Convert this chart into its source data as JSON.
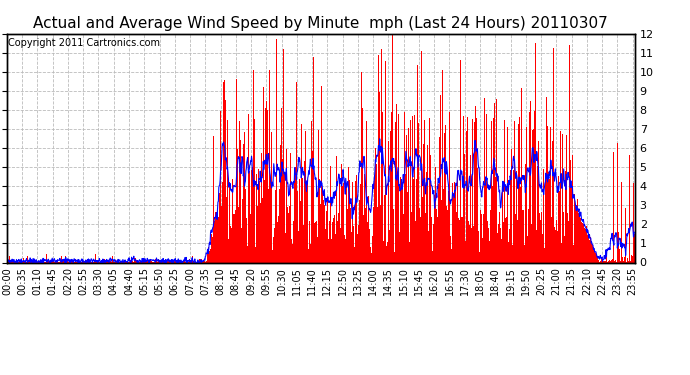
{
  "title": "Actual and Average Wind Speed by Minute  mph (Last 24 Hours) 20110307",
  "copyright_text": "Copyright 2011 Cartronics.com",
  "ylim": [
    0.0,
    12.0
  ],
  "yticks": [
    0.0,
    1.0,
    2.0,
    3.0,
    4.0,
    5.0,
    6.0,
    7.0,
    8.0,
    9.0,
    10.0,
    11.0,
    12.0
  ],
  "bar_color": "#ff0000",
  "line_color": "#0000ff",
  "background_color": "#ffffff",
  "grid_color": "#bbbbbb",
  "title_fontsize": 11,
  "copyright_fontsize": 7,
  "tick_fontsize": 7,
  "xtick_interval": 35
}
